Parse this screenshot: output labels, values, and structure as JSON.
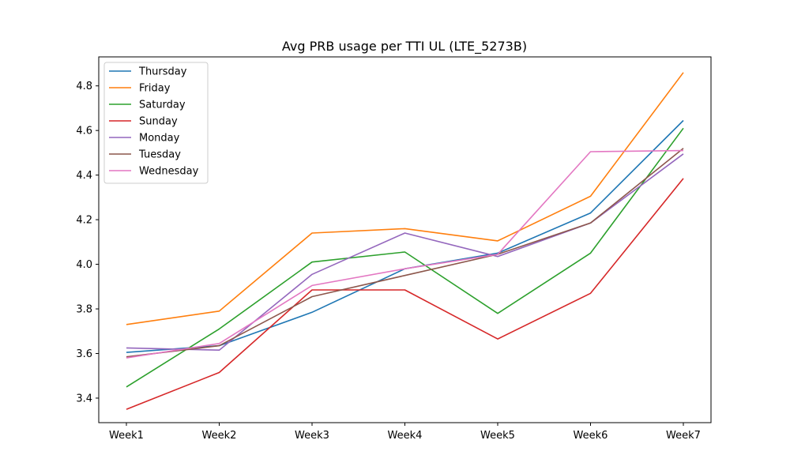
{
  "chart_data": {
    "type": "line",
    "title": "Avg PRB usage per TTI UL (LTE_5273B)",
    "xlabel": "",
    "ylabel": "",
    "categories": [
      "Week1",
      "Week2",
      "Week3",
      "Week4",
      "Week5",
      "Week6",
      "Week7"
    ],
    "ylim": [
      3.29,
      4.93
    ],
    "yticks": [
      3.4,
      3.6,
      3.8,
      4.0,
      4.2,
      4.4,
      4.6,
      4.8
    ],
    "ytick_labels": [
      "3.4",
      "3.6",
      "3.8",
      "4.0",
      "4.2",
      "4.4",
      "4.6",
      "4.8"
    ],
    "grid": false,
    "legend_position": "upper-left",
    "series": [
      {
        "name": "Thursday",
        "color": "#1f77b4",
        "values": [
          3.605,
          3.635,
          3.785,
          3.98,
          4.05,
          4.23,
          4.645
        ]
      },
      {
        "name": "Friday",
        "color": "#ff7f0e",
        "values": [
          3.73,
          3.79,
          4.14,
          4.16,
          4.105,
          4.305,
          4.86
        ]
      },
      {
        "name": "Saturday",
        "color": "#2ca02c",
        "values": [
          3.45,
          3.71,
          4.01,
          4.055,
          3.78,
          4.05,
          4.61
        ]
      },
      {
        "name": "Sunday",
        "color": "#d62728",
        "values": [
          3.35,
          3.515,
          3.885,
          3.885,
          3.665,
          3.87,
          4.385
        ]
      },
      {
        "name": "Monday",
        "color": "#9467bd",
        "values": [
          3.625,
          3.615,
          3.955,
          4.14,
          4.035,
          4.185,
          4.495
        ]
      },
      {
        "name": "Tuesday",
        "color": "#8c564b",
        "values": [
          3.585,
          3.635,
          3.855,
          3.95,
          4.045,
          4.185,
          4.52
        ]
      },
      {
        "name": "Wednesday",
        "color": "#e377c2",
        "values": [
          3.58,
          3.645,
          3.905,
          3.98,
          4.045,
          4.505,
          4.51
        ]
      }
    ]
  }
}
